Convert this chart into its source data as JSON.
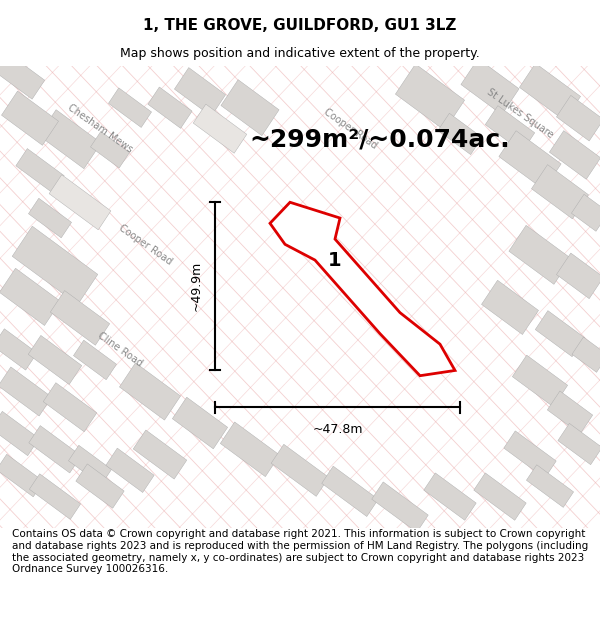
{
  "title": "1, THE GROVE, GUILDFORD, GU1 3LZ",
  "subtitle": "Map shows position and indicative extent of the property.",
  "area_text": "~299m²/~0.074ac.",
  "width_label": "~47.8m",
  "height_label": "~49.9m",
  "property_label": "1",
  "footer_text": "Contains OS data © Crown copyright and database right 2021. This information is subject to Crown copyright and database rights 2023 and is reproduced with the permission of HM Land Registry. The polygons (including the associated geometry, namely x, y co-ordinates) are subject to Crown copyright and database rights 2023 Ordnance Survey 100026316.",
  "map_bg": "#f5f3f0",
  "title_fontsize": 11,
  "subtitle_fontsize": 9,
  "area_fontsize": 18,
  "label_fontsize": 9,
  "footer_fontsize": 7.5
}
